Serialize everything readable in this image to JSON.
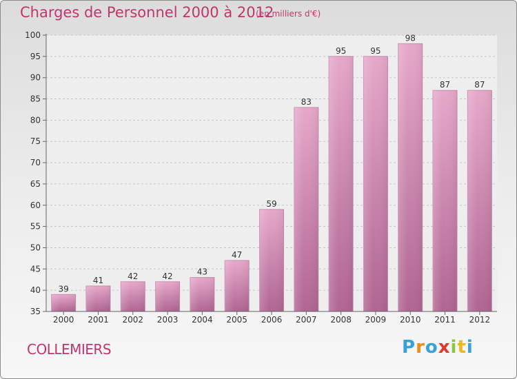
{
  "header": {
    "title": "Charges de Personnel 2000 à 2012",
    "subtitle": "(en milliers d'€)"
  },
  "footer": {
    "commune": "COLLEMIERS"
  },
  "logo": {
    "text": "Proxiti",
    "colors": [
      "#3aa0d8",
      "#f08a1c",
      "#3aa0d8",
      "#e23a2a",
      "#8cc63f",
      "#f0b81c",
      "#3aa0d8"
    ]
  },
  "colors": {
    "bar_top": "#e6a8ca",
    "bar_bottom": "#b06592",
    "text": "#c0356f"
  },
  "chart_data": {
    "type": "bar",
    "title": "Charges de Personnel 2000 à 2012",
    "subtitle": "(en milliers d'€)",
    "categories": [
      "2000",
      "2001",
      "2002",
      "2003",
      "2004",
      "2005",
      "2006",
      "2007",
      "2008",
      "2009",
      "2010",
      "2011",
      "2012"
    ],
    "values": [
      39,
      41,
      42,
      42,
      43,
      47,
      59,
      83,
      95,
      95,
      98,
      87,
      87
    ],
    "ylim": [
      35,
      100
    ],
    "yticks": [
      35,
      40,
      45,
      50,
      55,
      60,
      65,
      70,
      75,
      80,
      85,
      90,
      95,
      100
    ],
    "grid": true,
    "legend": "none"
  }
}
